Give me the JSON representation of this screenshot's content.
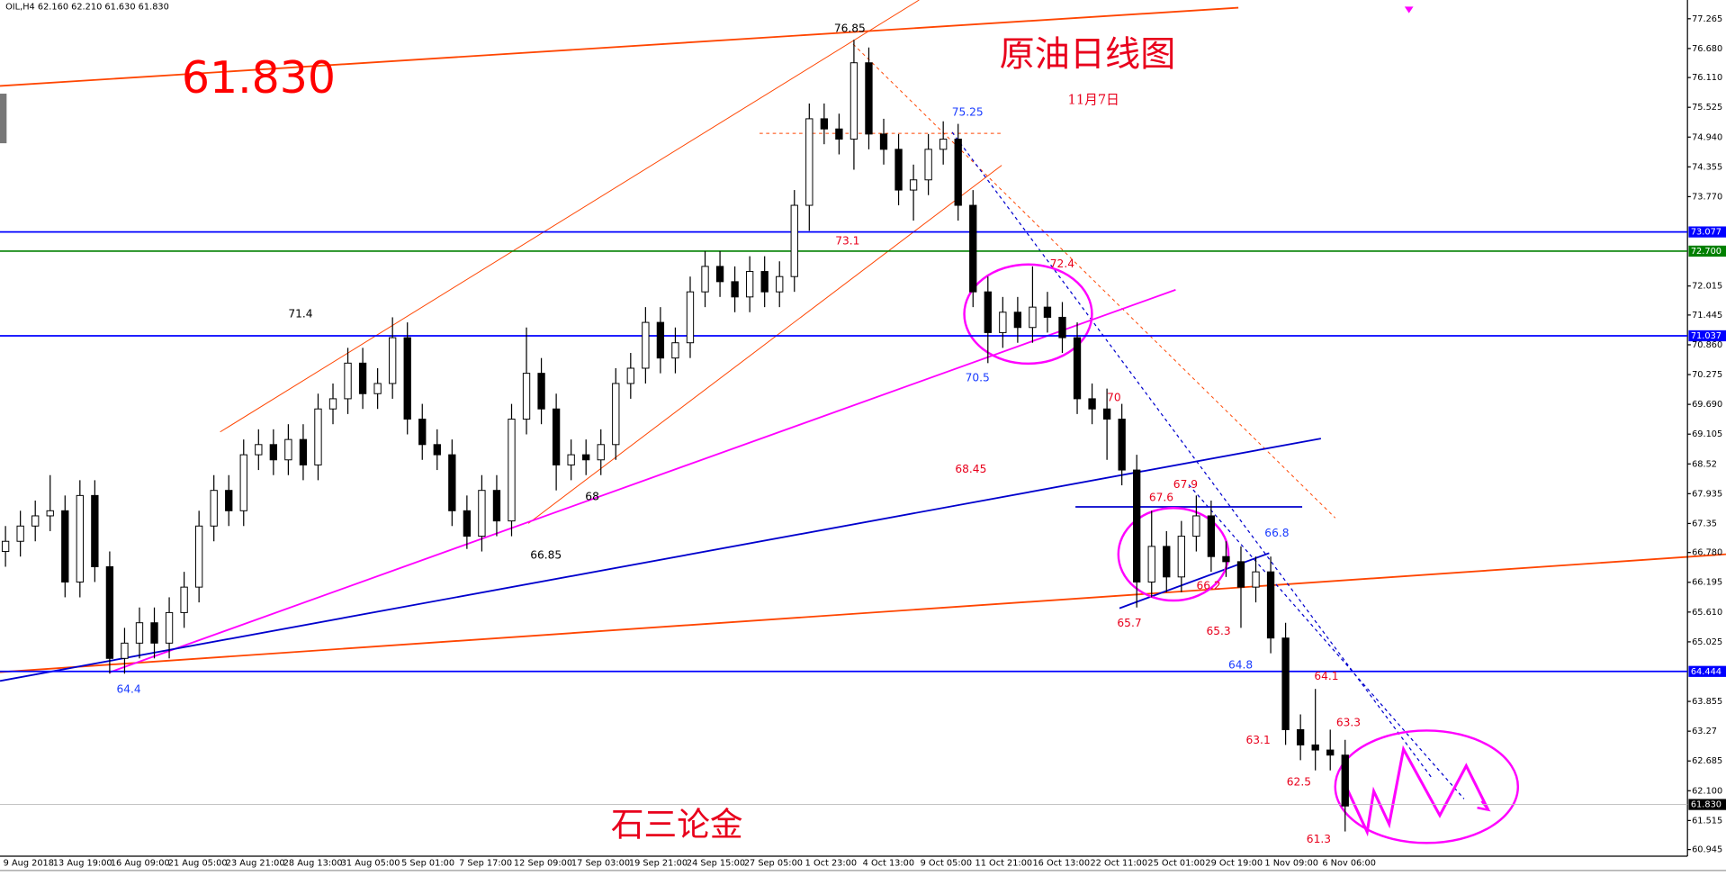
{
  "chart_data": {
    "type": "candlestick",
    "title": "OIL,H4 62.160 62.210 61.630 61.830",
    "price_label": "61.830",
    "heading": "原油日线图",
    "date_label": "11月7日",
    "signature": "石三论金",
    "ylim": [
      60.815,
      77.633
    ],
    "yticks": [
      77.265,
      {
        "value": 76.68,
        "label": "76.680"
      },
      {
        "value": 76.11,
        "label": "76.110"
      },
      75.525,
      {
        "value": 74.94,
        "label": "74.940"
      },
      74.355,
      {
        "value": 73.77,
        "label": "73.770"
      },
      72.015,
      71.445,
      {
        "value": 70.86,
        "label": "70.860"
      },
      70.275,
      {
        "value": 69.69,
        "label": "69.690"
      },
      69.105,
      68.52,
      67.935,
      67.35,
      {
        "value": 66.78,
        "label": "66.780"
      },
      66.195,
      {
        "value": 65.61,
        "label": "65.610"
      },
      65.025,
      63.855,
      63.27,
      62.685,
      {
        "value": 62.1,
        "label": "62.100"
      },
      61.515,
      60.945
    ],
    "levels": [
      {
        "value": 73.077,
        "label": "73.077",
        "color": "#0000ff"
      },
      {
        "value": 72.7,
        "label": "72.700",
        "color": "#008000"
      },
      {
        "value": 71.037,
        "label": "71.037",
        "color": "#0000ff"
      },
      {
        "value": 64.444,
        "label": "64.444",
        "color": "#0000ff"
      },
      {
        "value": 61.83,
        "label": "61.830",
        "color": "#000000"
      }
    ],
    "time_labels": [
      "9 Aug 2018",
      "13 Aug 19:00",
      "16 Aug 09:00",
      "21 Aug 05:00",
      "23 Aug 21:00",
      "28 Aug 13:00",
      "31 Aug 05:00",
      "5 Sep 01:00",
      "7 Sep 17:00",
      "12 Sep 09:00",
      "17 Sep 03:00",
      "19 Sep 21:00",
      "24 Sep 15:00",
      "27 Sep 05:00",
      "1 Oct 23:00",
      "4 Oct 13:00",
      "9 Oct 05:00",
      "11 Oct 21:00",
      "16 Oct 13:00",
      "22 Oct 11:00",
      "25 Oct 01:00",
      "29 Oct 19:00",
      "1 Nov 09:00",
      "6 Nov 06:00"
    ],
    "candles": {
      "open": [
        66.8,
        67.0,
        67.3,
        67.5,
        67.6,
        66.2,
        67.9,
        66.5,
        64.7,
        65.0,
        65.4,
        65.0,
        65.6,
        66.1,
        67.3,
        68.0,
        67.6,
        68.7,
        68.9,
        68.6,
        69.0,
        68.5,
        69.6,
        69.8,
        70.5,
        69.9,
        70.1,
        71.0,
        69.4,
        68.9,
        68.7,
        67.6,
        67.1,
        68.0,
        67.4,
        69.4,
        70.3,
        69.6,
        68.5,
        68.7,
        68.6,
        68.9,
        70.1,
        70.4,
        71.3,
        70.6,
        70.9,
        71.9,
        72.4,
        72.1,
        71.8,
        72.3,
        71.9,
        72.2,
        73.6,
        75.3,
        75.1,
        74.9,
        76.4,
        75.0,
        74.7,
        73.9,
        74.1,
        74.7,
        74.9,
        73.6,
        71.9,
        71.1,
        71.5,
        71.2,
        71.6,
        71.4,
        71.0,
        69.8,
        69.6,
        69.4,
        68.4,
        66.2,
        66.9,
        66.3,
        67.1,
        67.5,
        66.7,
        66.6,
        66.1,
        66.4,
        65.1,
        63.3,
        63.0,
        62.9,
        62.8
      ],
      "high": [
        67.3,
        67.6,
        67.8,
        68.3,
        67.9,
        68.2,
        68.2,
        66.8,
        65.3,
        65.7,
        65.7,
        65.9,
        66.4,
        67.6,
        68.3,
        68.3,
        69.0,
        69.2,
        69.2,
        69.3,
        69.3,
        69.9,
        70.1,
        70.8,
        70.8,
        70.4,
        71.4,
        71.3,
        69.7,
        69.2,
        69.0,
        67.9,
        68.3,
        68.3,
        69.7,
        71.2,
        70.6,
        69.9,
        69.0,
        69.0,
        69.2,
        70.4,
        70.7,
        71.6,
        71.6,
        71.2,
        72.2,
        72.7,
        72.7,
        72.4,
        72.6,
        72.6,
        72.5,
        73.9,
        75.6,
        75.6,
        75.4,
        76.85,
        76.7,
        75.3,
        75.0,
        74.4,
        75.0,
        75.25,
        75.2,
        73.9,
        72.2,
        71.8,
        71.8,
        72.4,
        71.9,
        71.7,
        71.3,
        70.1,
        70.0,
        69.7,
        68.7,
        67.6,
        67.2,
        67.4,
        67.9,
        67.8,
        67.0,
        66.9,
        66.7,
        66.7,
        65.4,
        63.6,
        64.1,
        63.3,
        63.1
      ],
      "low": [
        66.5,
        66.7,
        67.0,
        67.2,
        65.9,
        65.9,
        66.2,
        64.4,
        64.4,
        64.7,
        64.7,
        64.7,
        65.3,
        65.8,
        67.0,
        67.3,
        67.3,
        68.4,
        68.3,
        68.3,
        68.2,
        68.2,
        69.3,
        69.5,
        69.6,
        69.6,
        69.8,
        69.1,
        68.6,
        68.4,
        67.3,
        66.85,
        66.8,
        67.1,
        67.1,
        69.1,
        69.3,
        68.0,
        68.2,
        68.3,
        68.3,
        68.6,
        69.8,
        70.1,
        70.3,
        70.3,
        70.6,
        71.6,
        71.8,
        71.5,
        71.5,
        71.6,
        71.6,
        71.9,
        73.1,
        74.8,
        74.6,
        74.3,
        74.7,
        74.4,
        73.6,
        73.3,
        73.8,
        74.4,
        73.3,
        71.6,
        70.5,
        70.8,
        70.9,
        70.9,
        71.1,
        70.7,
        69.5,
        69.3,
        68.6,
        68.1,
        65.7,
        65.9,
        66.0,
        66.0,
        66.8,
        66.4,
        66.3,
        65.3,
        65.8,
        64.8,
        63.0,
        62.7,
        62.5,
        62.5,
        61.3
      ],
      "close": [
        67.0,
        67.3,
        67.5,
        67.6,
        66.2,
        67.9,
        66.5,
        64.7,
        65.0,
        65.4,
        65.0,
        65.6,
        66.1,
        67.3,
        68.0,
        67.6,
        68.7,
        68.9,
        68.6,
        69.0,
        68.5,
        69.6,
        69.8,
        70.5,
        69.9,
        70.1,
        71.0,
        69.4,
        68.9,
        68.7,
        67.6,
        67.1,
        68.0,
        67.4,
        69.4,
        70.3,
        69.6,
        68.5,
        68.7,
        68.6,
        68.9,
        70.1,
        70.4,
        71.3,
        70.6,
        70.9,
        71.9,
        72.4,
        72.1,
        71.8,
        72.3,
        71.9,
        72.2,
        73.6,
        75.3,
        75.1,
        74.9,
        76.4,
        75.0,
        74.7,
        73.9,
        74.1,
        74.7,
        74.9,
        73.6,
        71.9,
        71.1,
        71.5,
        71.2,
        71.6,
        71.4,
        71.0,
        69.8,
        69.6,
        69.4,
        68.4,
        66.2,
        66.9,
        66.3,
        67.1,
        67.5,
        66.7,
        66.6,
        66.1,
        66.4,
        65.1,
        63.3,
        63.0,
        62.9,
        62.8,
        61.8
      ]
    },
    "annotations": [
      {
        "text": "76.85",
        "color": "#000000"
      },
      {
        "text": "75.25",
        "color": "#1a3cff"
      },
      {
        "text": "73.1",
        "color": "#e8001c"
      },
      {
        "text": "72.4",
        "color": "#e8001c"
      },
      {
        "text": "71.4",
        "color": "#000000"
      },
      {
        "text": "70.5",
        "color": "#1a3cff"
      },
      {
        "text": "70",
        "color": "#e8001c"
      },
      {
        "text": "68.45",
        "color": "#e8001c"
      },
      {
        "text": "68",
        "color": "#000000"
      },
      {
        "text": "67.9",
        "color": "#e8001c"
      },
      {
        "text": "67.6",
        "color": "#e8001c"
      },
      {
        "text": "66.85",
        "color": "#000000"
      },
      {
        "text": "66.8",
        "color": "#1a3cff"
      },
      {
        "text": "66.2",
        "color": "#e8001c"
      },
      {
        "text": "65.7",
        "color": "#e8001c"
      },
      {
        "text": "65.3",
        "color": "#e8001c"
      },
      {
        "text": "64.8",
        "color": "#1a3cff"
      },
      {
        "text": "64.4",
        "color": "#1a3cff"
      },
      {
        "text": "64.1",
        "color": "#e8001c"
      },
      {
        "text": "63.3",
        "color": "#e8001c"
      },
      {
        "text": "63.1",
        "color": "#e8001c"
      },
      {
        "text": "62.5",
        "color": "#e8001c"
      },
      {
        "text": "61.3",
        "color": "#e8001c"
      }
    ]
  }
}
